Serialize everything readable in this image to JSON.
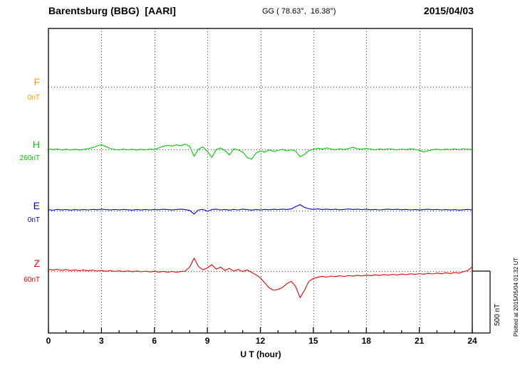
{
  "header": {
    "station_title": "Barentsburg (BBG)  [AARI]",
    "coordinates": "GG ( 78.63°,  16.38°)",
    "date": "2015/04/03"
  },
  "annotations": {
    "plotted_note": "Plotted at 2015/05/04 01:32 UT",
    "scale_bar_label": "500 nT"
  },
  "chart_data": {
    "type": "line",
    "title": "Barentsburg (BBG) [AARI] magnetogram for 2015/04/03",
    "xlabel": "U T (hour)",
    "x_range": [
      0,
      24
    ],
    "x_ticks": [
      0,
      3,
      6,
      9,
      12,
      15,
      18,
      21,
      24
    ],
    "x_minor_tick_step_hours": 1,
    "x_step_hours": 0.25,
    "grid": "dotted",
    "scale_bar_nT": 500,
    "series": [
      {
        "name": "F",
        "color": "#FFA000",
        "baseline_label": "0nT",
        "baseline_nT": 0,
        "values": []
      },
      {
        "name": "H",
        "color": "#00C800",
        "baseline_label": "260nT",
        "baseline_nT": 260,
        "values": [
          265,
          258,
          264,
          255,
          262,
          254,
          261,
          256,
          260,
          267,
          274,
          288,
          298,
          283,
          268,
          260,
          256,
          263,
          256,
          262,
          255,
          261,
          256,
          263,
          258,
          272,
          285,
          293,
          287,
          297,
          290,
          303,
          285,
          205,
          262,
          280,
          245,
          195,
          258,
          272,
          250,
          215,
          265,
          255,
          240,
          195,
          180,
          230,
          248,
          238,
          256,
          244,
          252,
          260,
          248,
          257,
          246,
          200,
          220,
          250,
          260,
          270,
          262,
          272,
          264,
          257,
          266,
          259,
          268,
          276,
          266,
          261,
          269,
          262,
          257,
          264,
          259,
          266,
          261,
          257,
          263,
          258,
          265,
          260,
          253,
          240,
          249,
          258,
          262,
          256,
          263,
          258,
          264,
          259,
          266,
          261,
          259
        ]
      },
      {
        "name": "E",
        "color": "#0000DC",
        "baseline_label": "0nT",
        "baseline_nT": 0,
        "values": [
          8,
          3,
          10,
          5,
          9,
          4,
          8,
          5,
          9,
          6,
          10,
          7,
          12,
          8,
          5,
          9,
          6,
          10,
          7,
          4,
          8,
          5,
          9,
          6,
          10,
          7,
          11,
          8,
          5,
          9,
          12,
          8,
          2,
          -28,
          6,
          10,
          -6,
          8,
          12,
          6,
          9,
          4,
          10,
          6,
          12,
          8,
          4,
          9,
          6,
          10,
          7,
          11,
          8,
          12,
          9,
          14,
          32,
          48,
          26,
          15,
          10,
          14,
          9,
          12,
          8,
          11,
          7,
          10,
          13,
          9,
          12,
          8,
          11,
          7,
          10,
          6,
          9,
          12,
          8,
          11,
          7,
          10,
          6,
          9,
          5,
          8,
          11,
          7,
          10,
          6,
          9,
          5,
          8,
          4,
          7,
          10,
          6
        ]
      },
      {
        "name": "Z",
        "color": "#EE0000",
        "baseline_label": "60nT",
        "baseline_nT": 60,
        "values": [
          75,
          68,
          74,
          66,
          72,
          64,
          70,
          63,
          69,
          62,
          68,
          60,
          66,
          58,
          64,
          57,
          63,
          56,
          62,
          55,
          61,
          54,
          60,
          53,
          59,
          52,
          58,
          51,
          57,
          50,
          56,
          60,
          92,
          165,
          96,
          70,
          86,
          112,
          76,
          92,
          66,
          82,
          58,
          74,
          56,
          70,
          50,
          30,
          5,
          -35,
          -75,
          -95,
          -88,
          -72,
          -42,
          -22,
          -65,
          -155,
          -95,
          -22,
          0,
          10,
          18,
          12,
          20,
          15,
          22,
          17,
          24,
          19,
          26,
          21,
          28,
          23,
          30,
          25,
          32,
          27,
          34,
          29,
          36,
          31,
          38,
          33,
          40,
          35,
          42,
          37,
          44,
          39,
          46,
          41,
          48,
          43,
          55,
          65,
          95
        ]
      }
    ]
  }
}
